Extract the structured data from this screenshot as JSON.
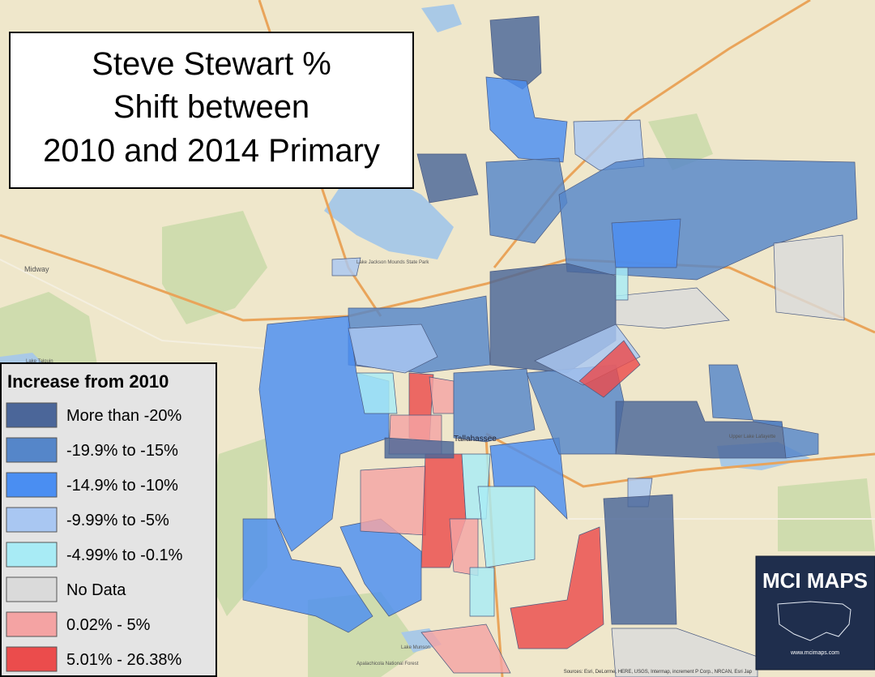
{
  "title": {
    "lines": [
      "Steve Stewart %",
      "Shift between",
      "2010 and 2014 Primary"
    ]
  },
  "legend": {
    "title": "Increase from 2010",
    "items": [
      {
        "label": "More than -20%",
        "color": "#4b6699"
      },
      {
        "label": "-19.9% to -15%",
        "color": "#5586c9"
      },
      {
        "label": "-14.9% to -10%",
        "color": "#4a8ef2"
      },
      {
        "label": "-9.99% to -5%",
        "color": "#a9c7f2"
      },
      {
        "label": "-4.99% to -0.1%",
        "color": "#a8ebf5"
      },
      {
        "label": "No Data",
        "color": "#dadada"
      },
      {
        "label": "0.02% - 5%",
        "color": "#f4a3a3"
      },
      {
        "label": "5.01% - 26.38%",
        "color": "#eb4c4c"
      }
    ]
  },
  "map_labels": {
    "city": "Tallahassee",
    "midway": "Midway",
    "lake_jackson": "Lake Jackson Mounds State Park",
    "lake_lafayette": "Upper Lake Lafayette",
    "lake_munson": "Lake Munson",
    "forest": "Apalachicola National Forest",
    "lake_talquin": "Lake Talquin"
  },
  "logo": {
    "name": "MCI MAPS",
    "url": "www.mcimaps.com"
  },
  "attribution": "Sources: Esri, DeLorme, HERE, USGS, Intermap, increment P Corp., NRCAN, Esri Jap"
}
